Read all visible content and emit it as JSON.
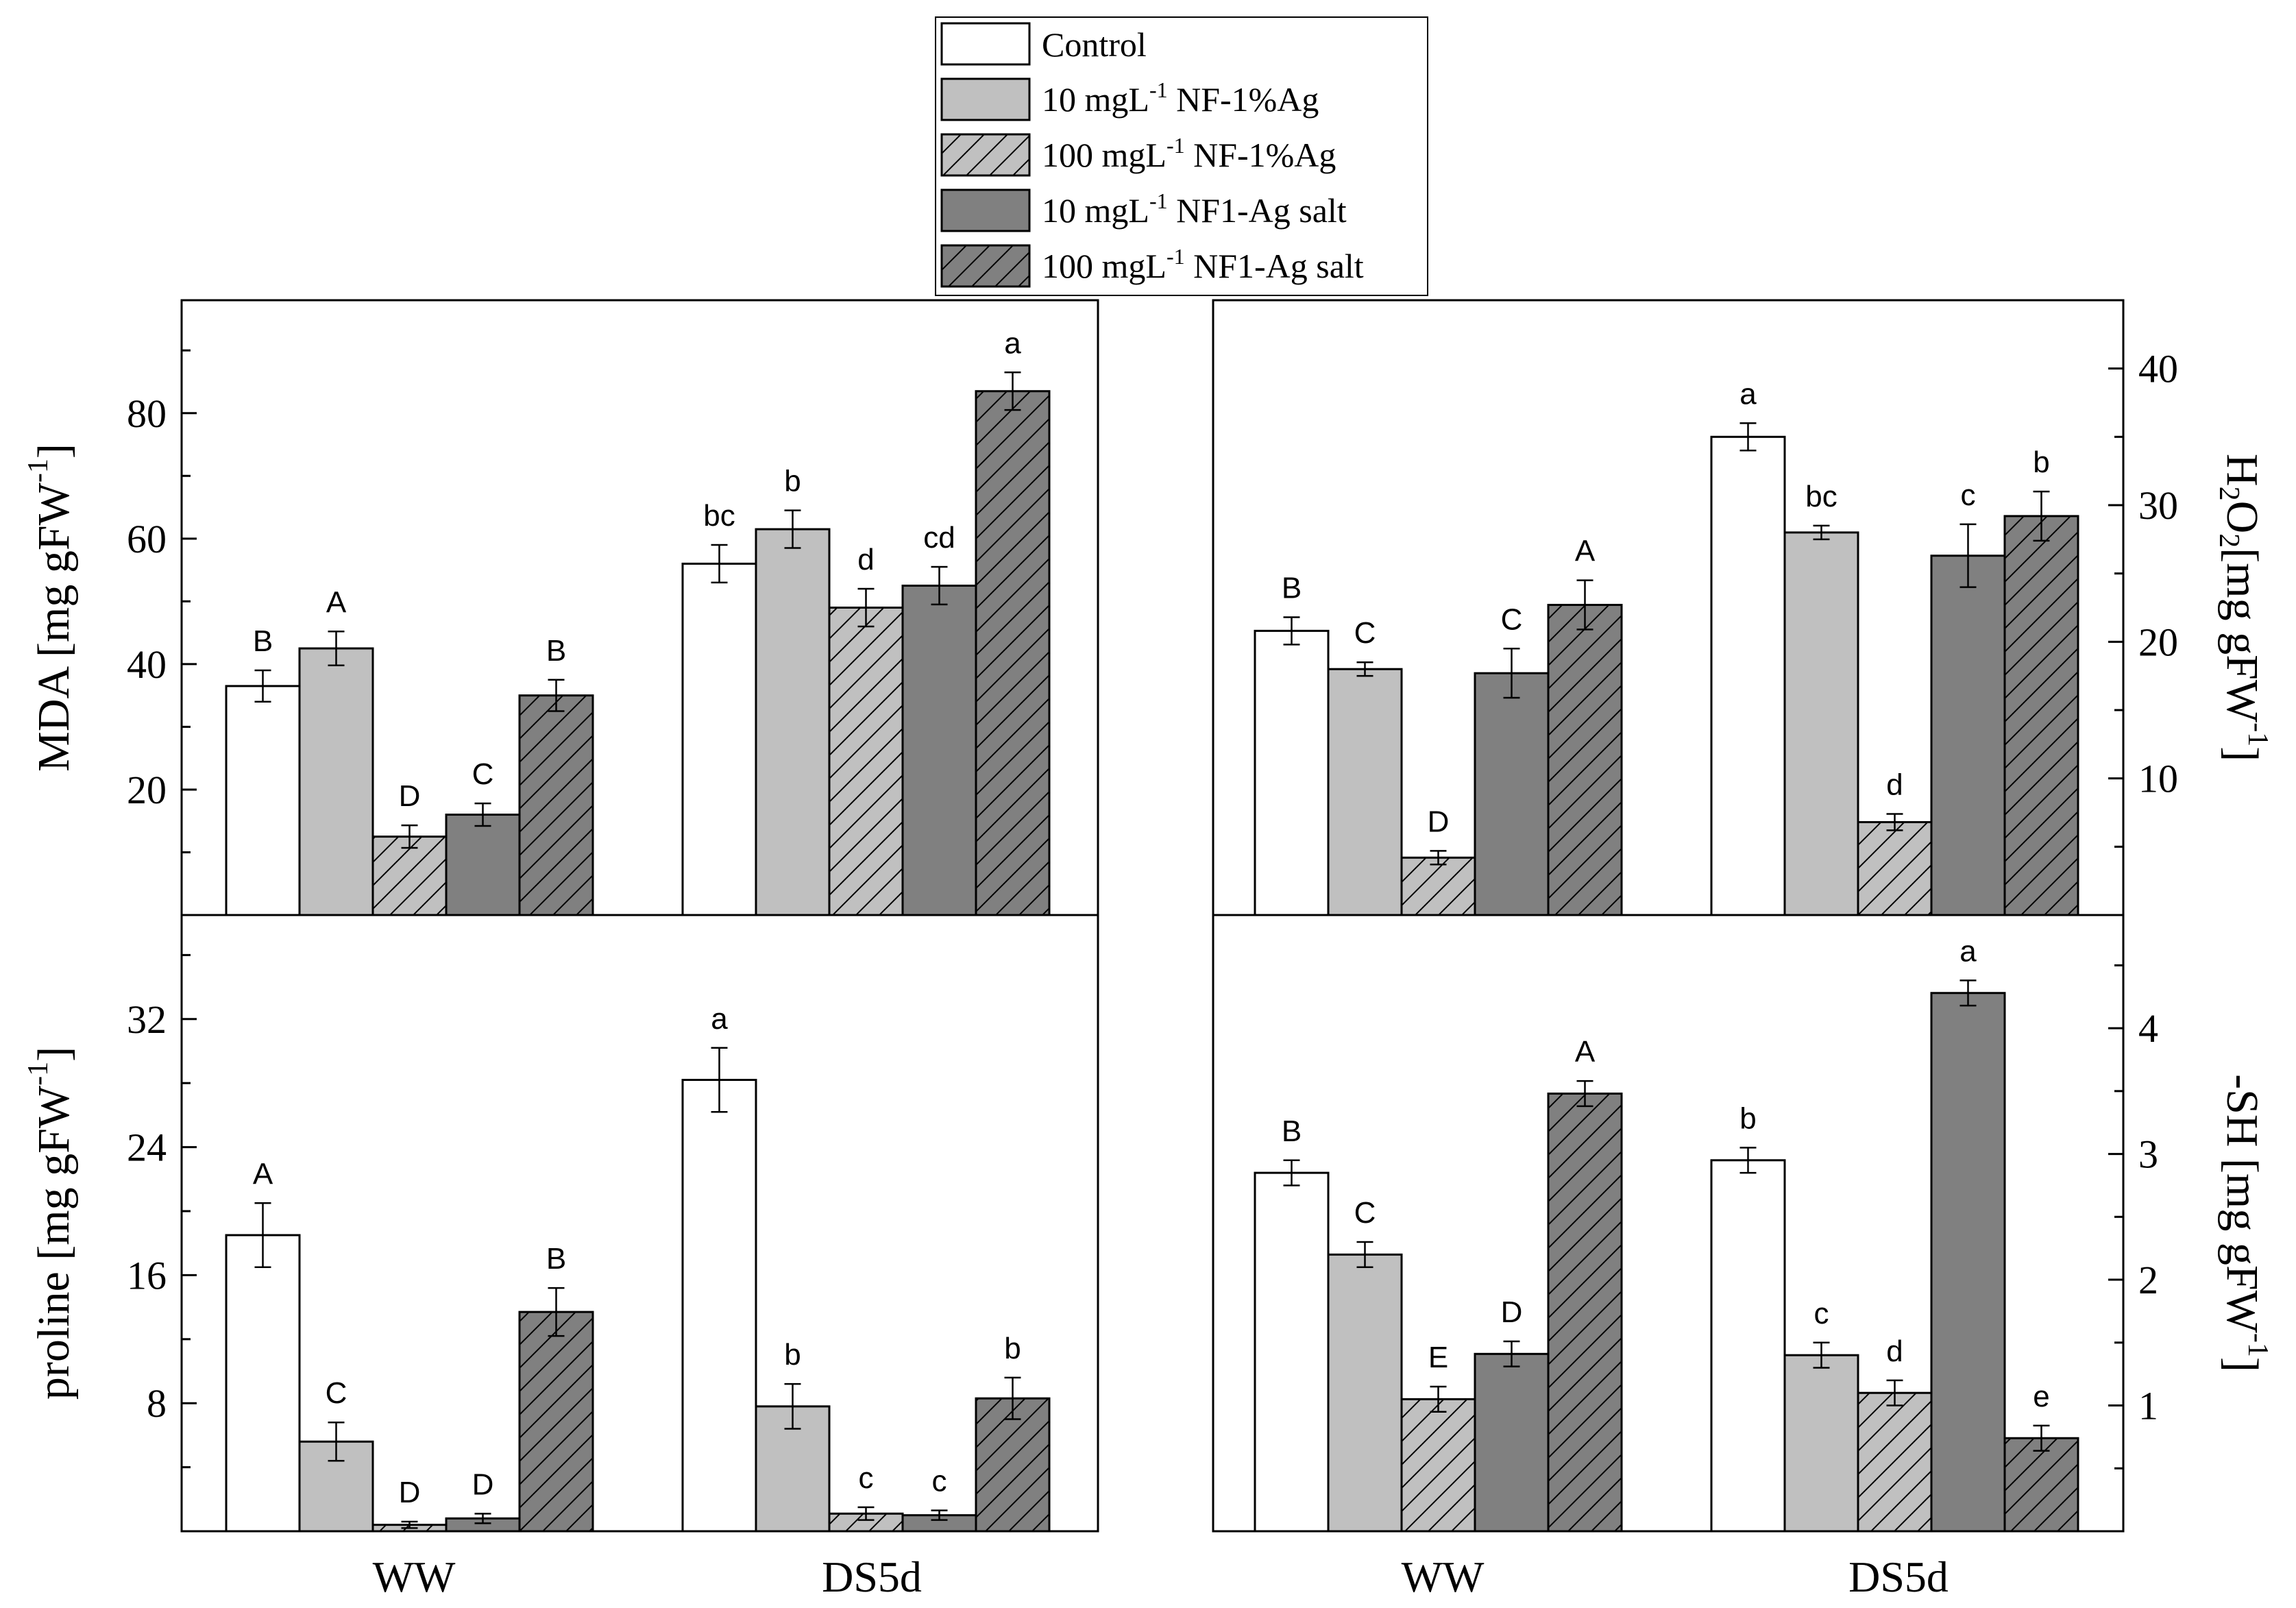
{
  "legend": [
    {
      "key": "control",
      "label": "Control"
    },
    {
      "key": "nf10",
      "label": "10 mgL",
      "sup": "-1",
      "rest": " NF-1%Ag"
    },
    {
      "key": "nf100",
      "label": "100 mgL",
      "sup": "-1",
      "rest": " NF-1%Ag"
    },
    {
      "key": "salt10",
      "label": "10 mgL",
      "sup": "-1",
      "rest": " NF1-Ag salt"
    },
    {
      "key": "salt100",
      "label": "100 mgL",
      "sup": "-1",
      "rest": " NF1-Ag salt"
    }
  ],
  "colors": {
    "control": "#ffffff",
    "nf10": "#c0c0c0",
    "nf100": "#c0c0c0",
    "salt10": "#808080",
    "salt100": "#808080",
    "hatch": "#000000",
    "axis": "#000000"
  },
  "x_categories": [
    "WW",
    "DS5d"
  ],
  "chart_data": [
    {
      "id": "mda",
      "type": "bar",
      "ylabel": "MDA [mg gFW",
      "ylabel_sup": "-1",
      "ylabel_end": "]",
      "ylim": [
        0,
        98
      ],
      "ticks": [
        20,
        40,
        60,
        80
      ],
      "tick_labels": [
        "20",
        "40",
        "60",
        "80"
      ],
      "categories": [
        "WW",
        "DS5d"
      ],
      "series": [
        {
          "key": "control",
          "values": [
            36.5,
            56.0
          ],
          "errors": [
            2.5,
            3.0
          ],
          "letters": [
            "B",
            "bc"
          ]
        },
        {
          "key": "nf10",
          "values": [
            42.5,
            61.5
          ],
          "errors": [
            2.7,
            3.0
          ],
          "letters": [
            "A",
            "b"
          ]
        },
        {
          "key": "nf100",
          "values": [
            12.5,
            49.0
          ],
          "errors": [
            1.8,
            3.0
          ],
          "letters": [
            "D",
            "d"
          ]
        },
        {
          "key": "salt10",
          "values": [
            16.0,
            52.5
          ],
          "errors": [
            1.8,
            3.0
          ],
          "letters": [
            "C",
            "cd"
          ]
        },
        {
          "key": "salt100",
          "values": [
            35.0,
            83.5
          ],
          "errors": [
            2.5,
            3.0
          ],
          "letters": [
            "B",
            "a"
          ]
        }
      ]
    },
    {
      "id": "h2o2",
      "type": "bar",
      "ylabel": "H",
      "ylabel_sub": "2",
      "ylabel_mid": "O",
      "ylabel_sub2": "2",
      "ylabel_tail": "[mg gFW",
      "ylabel_sup": "-1",
      "ylabel_end": "]",
      "ylim": [
        0,
        45
      ],
      "ticks": [
        10,
        20,
        30,
        40
      ],
      "tick_labels": [
        "10",
        "20",
        "30",
        "40"
      ],
      "categories": [
        "WW",
        "DS5d"
      ],
      "series": [
        {
          "key": "control",
          "values": [
            20.8,
            35.0
          ],
          "errors": [
            1.0,
            1.0
          ],
          "letters": [
            "B",
            "a"
          ]
        },
        {
          "key": "nf10",
          "values": [
            18.0,
            28.0
          ],
          "errors": [
            0.5,
            0.5
          ],
          "letters": [
            "C",
            "bc"
          ]
        },
        {
          "key": "nf100",
          "values": [
            4.2,
            6.8
          ],
          "errors": [
            0.5,
            0.6
          ],
          "letters": [
            "D",
            "d"
          ]
        },
        {
          "key": "salt10",
          "values": [
            17.7,
            26.3
          ],
          "errors": [
            1.8,
            2.3
          ],
          "letters": [
            "C",
            "c"
          ]
        },
        {
          "key": "salt100",
          "values": [
            22.7,
            29.2
          ],
          "errors": [
            1.8,
            1.8
          ],
          "letters": [
            "A",
            "b"
          ]
        }
      ]
    },
    {
      "id": "proline",
      "type": "bar",
      "ylabel": "proline [mg gFW",
      "ylabel_sup": "-1",
      "ylabel_end": "]",
      "ylim": [
        0,
        38.5
      ],
      "ticks": [
        8,
        16,
        24,
        32
      ],
      "tick_labels": [
        "8",
        "16",
        "24",
        "32"
      ],
      "categories": [
        "WW",
        "DS5d"
      ],
      "series": [
        {
          "key": "control",
          "values": [
            18.5,
            28.2
          ],
          "errors": [
            2.0,
            2.0
          ],
          "letters": [
            "A",
            "a"
          ]
        },
        {
          "key": "nf10",
          "values": [
            5.6,
            7.8
          ],
          "errors": [
            1.2,
            1.4
          ],
          "letters": [
            "C",
            "b"
          ]
        },
        {
          "key": "nf100",
          "values": [
            0.4,
            1.1
          ],
          "errors": [
            0.2,
            0.4
          ],
          "letters": [
            "D",
            "c"
          ]
        },
        {
          "key": "salt10",
          "values": [
            0.8,
            1.0
          ],
          "errors": [
            0.3,
            0.3
          ],
          "letters": [
            "D",
            "c"
          ]
        },
        {
          "key": "salt100",
          "values": [
            13.7,
            8.3
          ],
          "errors": [
            1.5,
            1.3
          ],
          "letters": [
            "B",
            "b"
          ]
        }
      ]
    },
    {
      "id": "sh",
      "type": "bar",
      "ylabel": "-SH [mg gFW",
      "ylabel_sup": "-1",
      "ylabel_end": "]",
      "ylim": [
        0,
        4.9
      ],
      "ticks": [
        1,
        2,
        3,
        4
      ],
      "tick_labels": [
        "1",
        "2",
        "3",
        "4"
      ],
      "categories": [
        "WW",
        "DS5d"
      ],
      "series": [
        {
          "key": "control",
          "values": [
            2.85,
            2.95
          ],
          "errors": [
            0.1,
            0.1
          ],
          "letters": [
            "B",
            "b"
          ]
        },
        {
          "key": "nf10",
          "values": [
            2.2,
            1.4
          ],
          "errors": [
            0.1,
            0.1
          ],
          "letters": [
            "C",
            "c"
          ]
        },
        {
          "key": "nf100",
          "values": [
            1.05,
            1.1
          ],
          "errors": [
            0.1,
            0.1
          ],
          "letters": [
            "E",
            "d"
          ]
        },
        {
          "key": "salt10",
          "values": [
            1.41,
            4.28
          ],
          "errors": [
            0.1,
            0.1
          ],
          "letters": [
            "D",
            "a"
          ]
        },
        {
          "key": "salt100",
          "values": [
            3.48,
            0.74
          ],
          "errors": [
            0.1,
            0.1
          ],
          "letters": [
            "A",
            "e"
          ]
        }
      ]
    }
  ]
}
